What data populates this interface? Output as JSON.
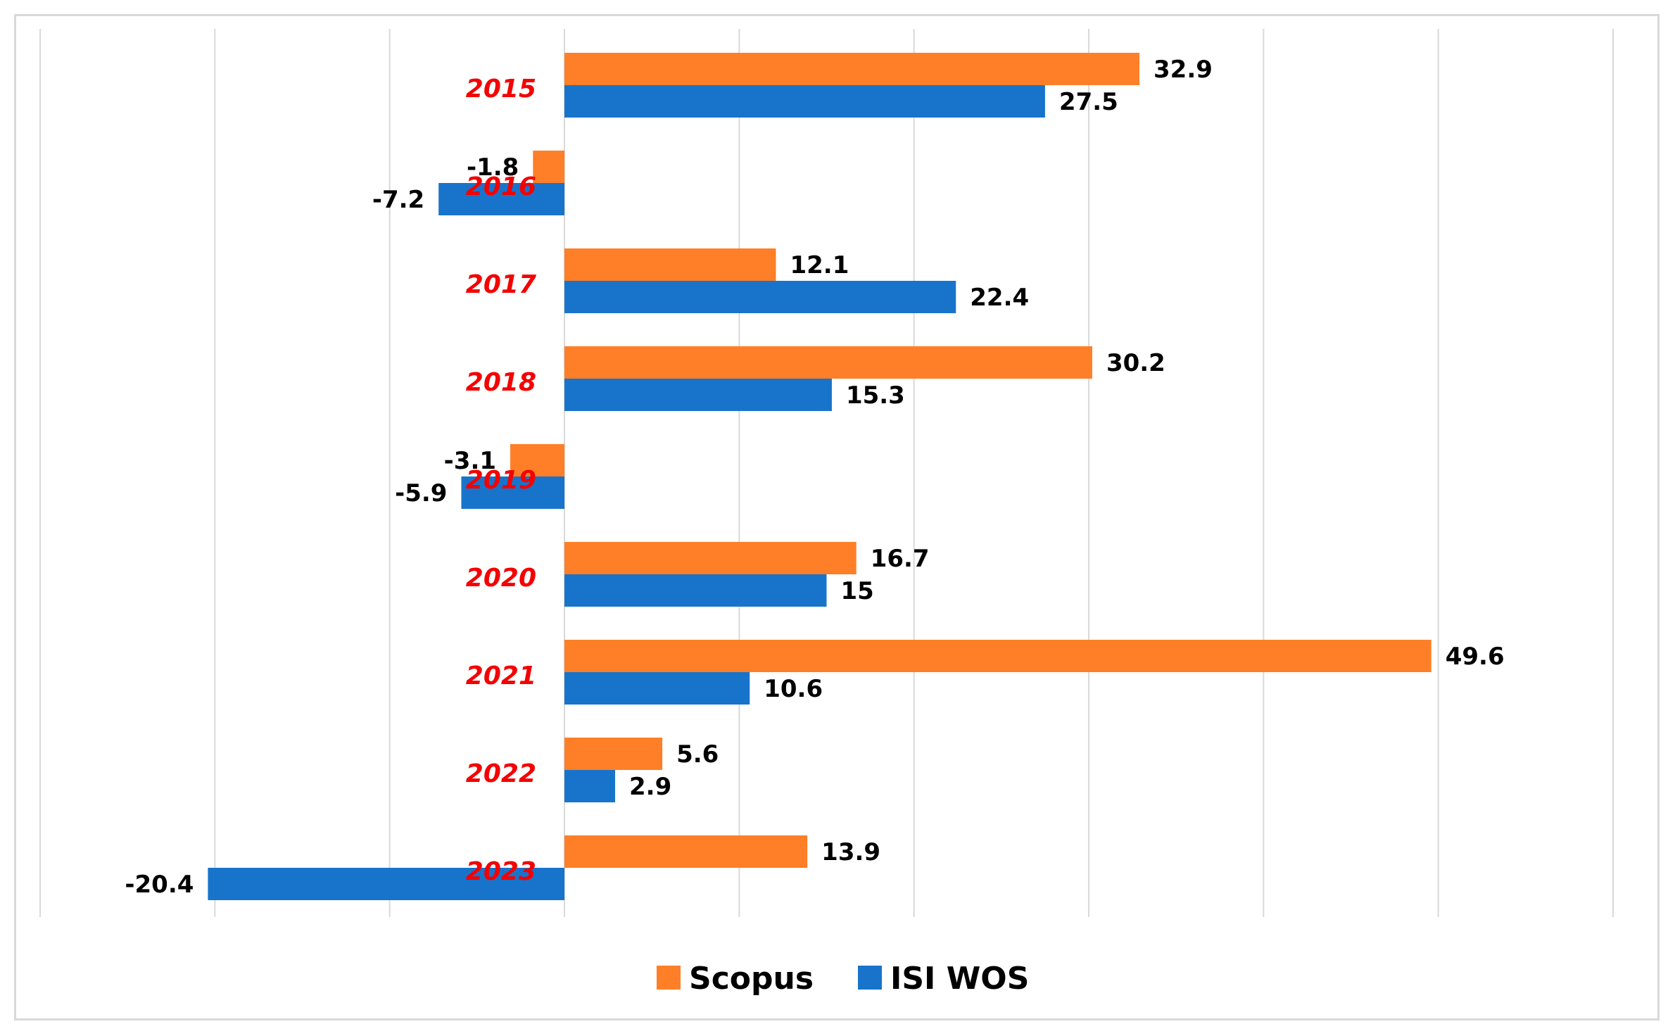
{
  "colors": {
    "scopus": "#FE7F27",
    "isi_wos": "#1874CB",
    "category_label": "#F40101",
    "gridline": "#d9d9d9",
    "value_label": "#000000"
  },
  "chart_data": {
    "type": "bar",
    "orientation": "horizontal",
    "title": "",
    "xlabel": "",
    "ylabel": "",
    "categories": [
      "2015",
      "2016",
      "2017",
      "2018",
      "2019",
      "2020",
      "2021",
      "2022",
      "2023"
    ],
    "series": [
      {
        "name": "Scopus",
        "color": "#FE7F27",
        "values": [
          32.9,
          -1.8,
          12.1,
          30.2,
          -3.1,
          16.7,
          49.6,
          5.6,
          13.9
        ],
        "labels": [
          "32.9",
          "-1.8",
          "12.1",
          "30.2",
          "-3.1",
          "16.7",
          "49.6",
          "5.6",
          "13.9"
        ]
      },
      {
        "name": "ISI WOS",
        "color": "#1874CB",
        "values": [
          27.5,
          -7.2,
          22.4,
          15.3,
          -5.9,
          15,
          10.6,
          2.9,
          -20.4
        ],
        "labels": [
          "27.5",
          "-7.2",
          "22.4",
          "15.3",
          "-5.9",
          "15",
          "10.6",
          "2.9",
          "-20.4"
        ]
      }
    ],
    "xlim": [
      -30,
      60
    ],
    "grid": true,
    "legend_position": "bottom",
    "tick_labels_visible": false
  }
}
